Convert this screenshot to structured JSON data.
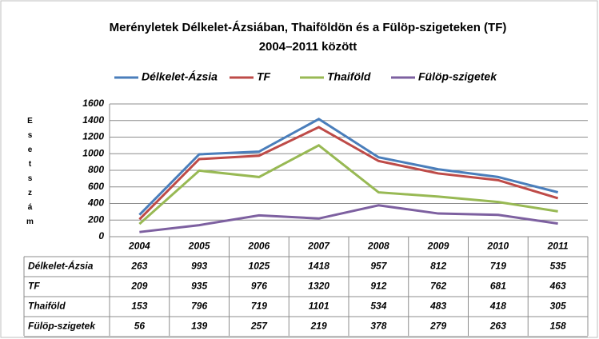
{
  "chart_data": {
    "type": "line",
    "title": [
      "Merényletek Délkelet-Ázsiában, Thaiföldön és a Fülöp-szigeteken (TF)",
      "2004–2011 között"
    ],
    "y_label": "Esetszám",
    "categories": [
      "2004",
      "2005",
      "2006",
      "2007",
      "2008",
      "2009",
      "2010",
      "2011"
    ],
    "series": [
      {
        "name": "Délkelet-Ázsia",
        "color": "#4a7ebb",
        "values": [
          263,
          993,
          1025,
          1418,
          957,
          812,
          719,
          535
        ]
      },
      {
        "name": "TF",
        "color": "#be4b48",
        "values": [
          209,
          935,
          976,
          1320,
          912,
          762,
          681,
          463
        ]
      },
      {
        "name": "Thaiföld",
        "color": "#98b954",
        "values": [
          153,
          796,
          719,
          1101,
          534,
          483,
          418,
          305
        ]
      },
      {
        "name": "Fülöp-szigetek",
        "color": "#7d60a0",
        "values": [
          56,
          139,
          257,
          219,
          378,
          279,
          263,
          158
        ]
      }
    ],
    "ylim": [
      0,
      1600
    ],
    "yticks": [
      0,
      200,
      400,
      600,
      800,
      1000,
      1200,
      1400,
      1600
    ],
    "grid": true,
    "legend": "top",
    "data_table": true
  }
}
